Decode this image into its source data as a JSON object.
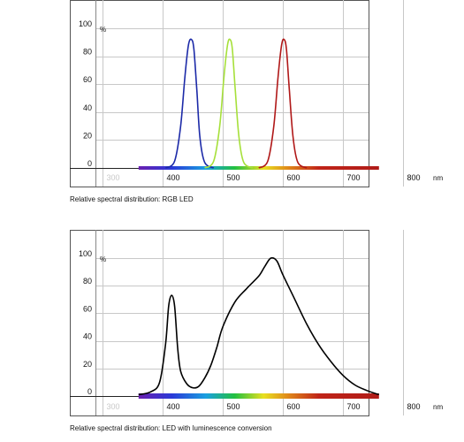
{
  "chart_data": [
    {
      "type": "line",
      "title": "Relative spectral distribution: RGB LED",
      "y_unit": "%",
      "x_unit": "nm",
      "xlim": [
        300,
        800
      ],
      "ylim": [
        0,
        100
      ],
      "x_ticks": [
        "300",
        "400",
        "500",
        "600",
        "700",
        "800"
      ],
      "y_ticks": [
        "0",
        "20",
        "40",
        "60",
        "80",
        "100"
      ],
      "grid": true,
      "spectrum_bar": {
        "range": [
          360,
          760
        ],
        "colors": [
          "#6a1fb0",
          "#2a3ad8",
          "#1aa0e0",
          "#22c040",
          "#e8e020",
          "#e08a1a",
          "#c02418",
          "#b01c18"
        ]
      },
      "series": [
        {
          "color": "#1c2aa8",
          "x": [
            405,
            420,
            430,
            437,
            443,
            448,
            452,
            457,
            462,
            470,
            485
          ],
          "y": [
            0,
            5,
            30,
            65,
            88,
            92,
            85,
            55,
            22,
            4,
            0
          ]
        },
        {
          "color": "#a6e03a",
          "x": [
            470,
            485,
            495,
            502,
            508,
            512,
            516,
            521,
            527,
            535,
            550
          ],
          "y": [
            0,
            5,
            30,
            65,
            88,
            92,
            85,
            55,
            22,
            4,
            0
          ]
        },
        {
          "color": "#b01818",
          "x": [
            560,
            575,
            585,
            592,
            598,
            602,
            606,
            611,
            617,
            625,
            640
          ],
          "y": [
            0,
            5,
            30,
            65,
            88,
            92,
            85,
            55,
            22,
            4,
            0
          ]
        }
      ]
    },
    {
      "type": "line",
      "title": "Relative spectral distribution: LED with luminescence conversion",
      "y_unit": "%",
      "x_unit": "nm",
      "xlim": [
        300,
        800
      ],
      "ylim": [
        0,
        100
      ],
      "x_ticks": [
        "300",
        "400",
        "500",
        "600",
        "700",
        "800"
      ],
      "y_ticks": [
        "0",
        "20",
        "40",
        "60",
        "80",
        "100"
      ],
      "grid": true,
      "spectrum_bar": {
        "range": [
          360,
          760
        ],
        "colors": [
          "#6a1fb0",
          "#2a3ad8",
          "#1aa0e0",
          "#22c040",
          "#e8e020",
          "#e08a1a",
          "#c02418",
          "#b01c18"
        ]
      },
      "series": [
        {
          "color": "#000000",
          "x": [
            360,
            380,
            395,
            405,
            410,
            415,
            420,
            425,
            430,
            440,
            450,
            460,
            470,
            480,
            490,
            500,
            520,
            540,
            560,
            570,
            580,
            590,
            600,
            620,
            640,
            660,
            680,
            700,
            720,
            740,
            760
          ],
          "y": [
            1,
            3,
            10,
            38,
            65,
            73,
            65,
            35,
            18,
            9,
            6,
            7,
            13,
            22,
            35,
            50,
            68,
            78,
            87,
            94,
            100,
            98,
            88,
            70,
            52,
            37,
            25,
            15,
            8,
            4,
            1
          ]
        }
      ]
    }
  ]
}
